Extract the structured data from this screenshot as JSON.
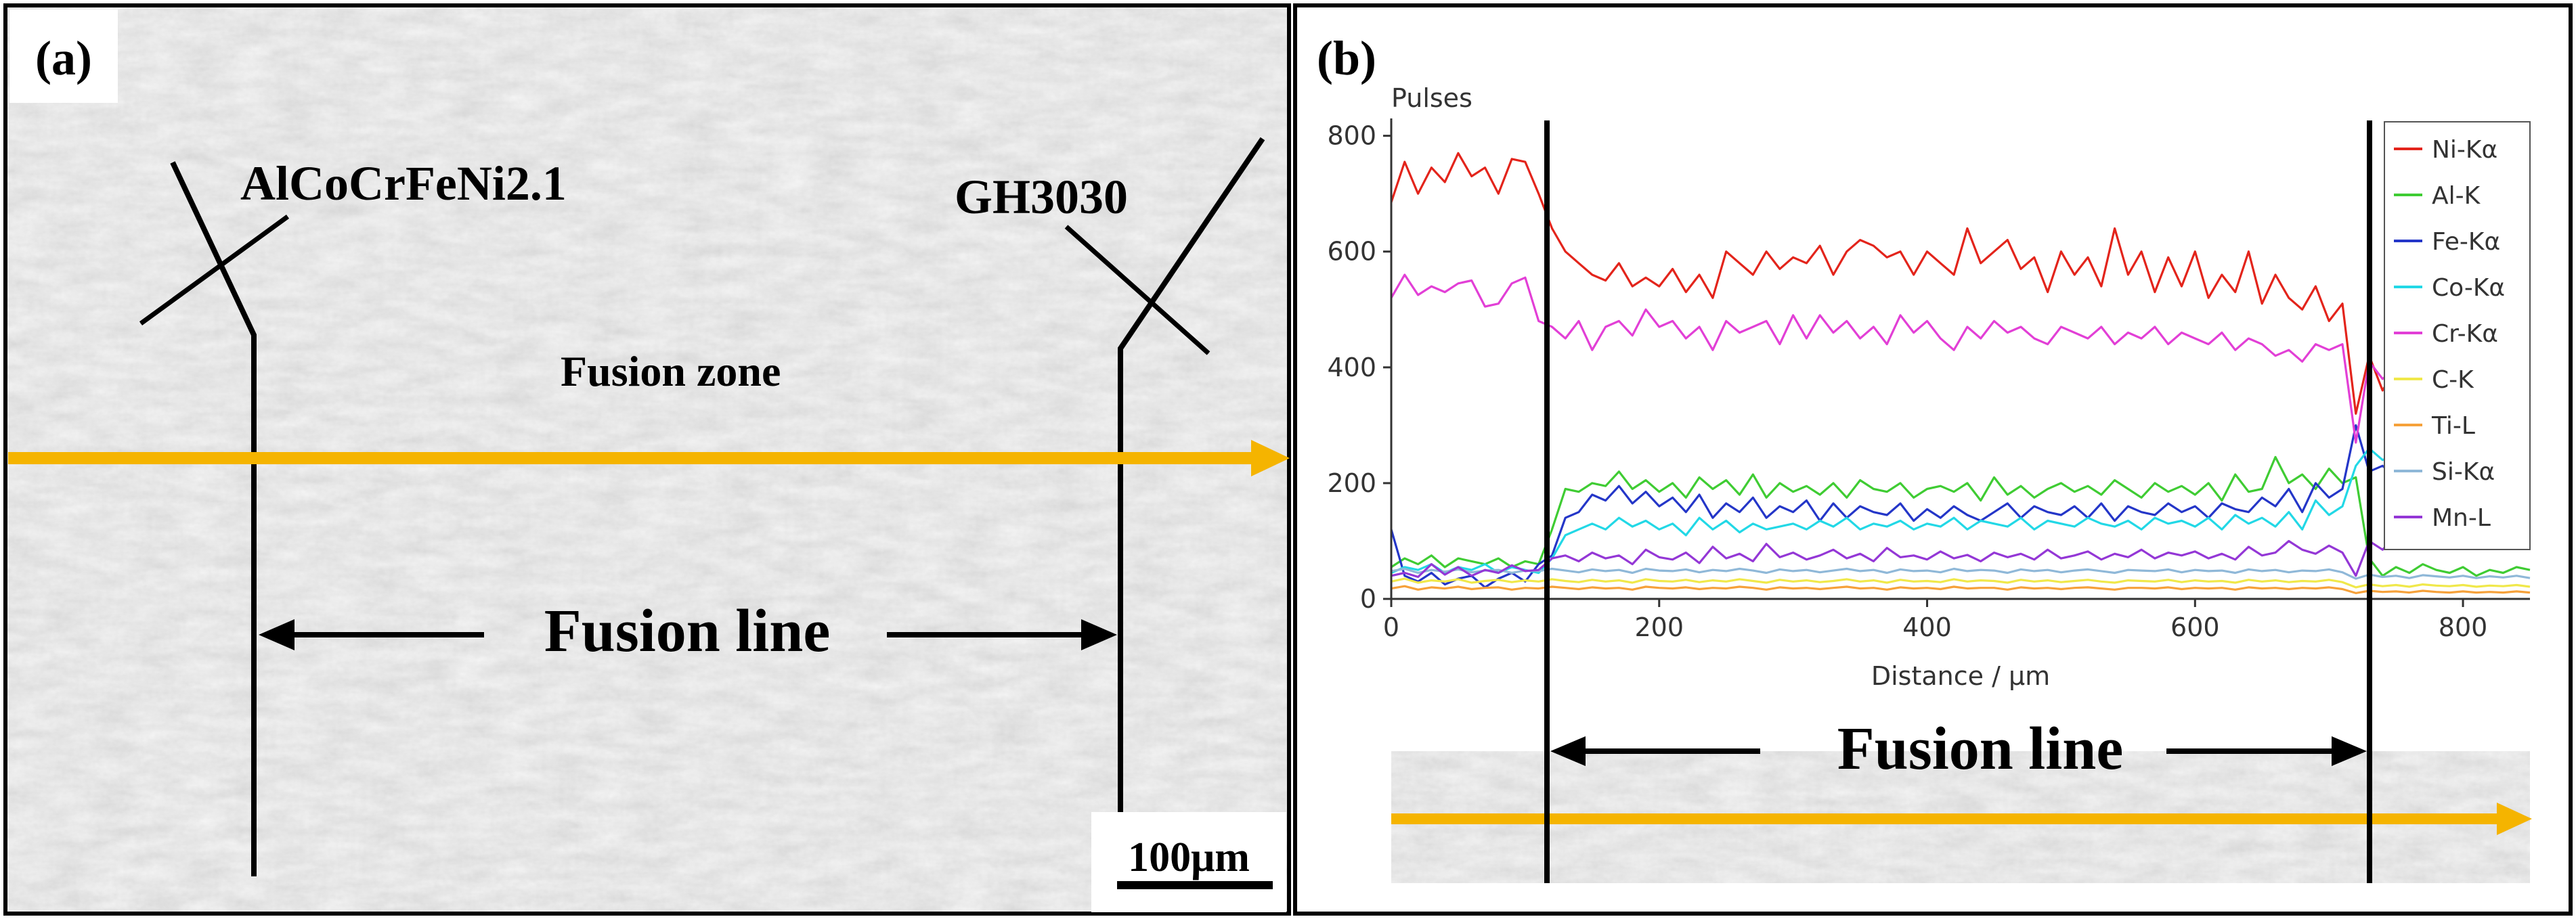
{
  "panel_a": {
    "label": "(a)",
    "base_alloy_label": "AlCoCrFeNi2.1",
    "other_alloy_label": "GH3030",
    "zone_label": "Fusion zone",
    "fusion_line_label": "Fusion line",
    "scale_bar_label": "100μm"
  },
  "panel_b": {
    "label": "(b)",
    "fusion_line_label": "Fusion line"
  },
  "colors": {
    "scan_arrow": "#f5b400",
    "sem_background": "#cdcdcd"
  },
  "chart_data": {
    "type": "line",
    "title": "",
    "xlabel": "Distance / μm",
    "ylabel": "Pulses",
    "xlim": [
      0,
      850
    ],
    "ylim": [
      0,
      830
    ],
    "xticks": [
      0,
      200,
      400,
      600,
      800
    ],
    "yticks": [
      0,
      200,
      400,
      600,
      800
    ],
    "grid": false,
    "legend_position": "top-right",
    "fusion_lines_x": [
      113,
      725
    ],
    "x": [
      0,
      10,
      20,
      30,
      40,
      50,
      60,
      70,
      80,
      90,
      100,
      110,
      120,
      130,
      140,
      150,
      160,
      170,
      180,
      190,
      200,
      210,
      220,
      230,
      240,
      250,
      260,
      270,
      280,
      290,
      300,
      310,
      320,
      330,
      340,
      350,
      360,
      370,
      380,
      390,
      400,
      410,
      420,
      430,
      440,
      450,
      460,
      470,
      480,
      490,
      500,
      510,
      520,
      530,
      540,
      550,
      560,
      570,
      580,
      590,
      600,
      610,
      620,
      630,
      640,
      650,
      660,
      670,
      680,
      690,
      700,
      710,
      720,
      730,
      740,
      750,
      760,
      770,
      780,
      790,
      800,
      810,
      820,
      830,
      840,
      850
    ],
    "series": [
      {
        "name": "Ni-Kα",
        "color": "#e3241b",
        "values": [
          685,
          755,
          700,
          745,
          720,
          770,
          730,
          745,
          700,
          760,
          755,
          700,
          640,
          600,
          580,
          560,
          550,
          580,
          540,
          555,
          540,
          570,
          530,
          560,
          520,
          600,
          580,
          560,
          600,
          570,
          590,
          580,
          610,
          560,
          600,
          620,
          610,
          590,
          600,
          560,
          600,
          580,
          560,
          640,
          580,
          600,
          620,
          570,
          590,
          530,
          600,
          560,
          590,
          540,
          640,
          560,
          600,
          530,
          590,
          540,
          600,
          520,
          560,
          530,
          600,
          510,
          560,
          520,
          500,
          540,
          480,
          510,
          320,
          420,
          360,
          400,
          330,
          390,
          350,
          410,
          380,
          340,
          390,
          360,
          380,
          350
        ]
      },
      {
        "name": "Al-K",
        "color": "#3fcc33",
        "values": [
          55,
          70,
          60,
          75,
          55,
          70,
          65,
          60,
          70,
          55,
          65,
          60,
          120,
          190,
          185,
          200,
          195,
          220,
          190,
          205,
          185,
          200,
          175,
          210,
          190,
          205,
          180,
          215,
          175,
          200,
          185,
          195,
          180,
          200,
          175,
          205,
          190,
          185,
          200,
          175,
          190,
          195,
          185,
          200,
          170,
          210,
          180,
          195,
          175,
          190,
          200,
          185,
          195,
          180,
          205,
          190,
          175,
          200,
          185,
          195,
          180,
          200,
          170,
          215,
          185,
          190,
          245,
          200,
          215,
          190,
          225,
          200,
          210,
          70,
          40,
          55,
          45,
          60,
          50,
          45,
          55,
          40,
          50,
          45,
          55,
          50
        ]
      },
      {
        "name": "Fe-Kα",
        "color": "#2436c8",
        "values": [
          120,
          40,
          30,
          45,
          25,
          35,
          40,
          20,
          35,
          45,
          30,
          60,
          75,
          140,
          150,
          180,
          170,
          195,
          165,
          185,
          160,
          175,
          150,
          180,
          140,
          165,
          150,
          175,
          140,
          160,
          150,
          170,
          135,
          165,
          140,
          160,
          150,
          145,
          165,
          135,
          155,
          140,
          160,
          145,
          135,
          150,
          165,
          140,
          160,
          150,
          145,
          160,
          140,
          165,
          135,
          160,
          150,
          145,
          165,
          150,
          160,
          140,
          165,
          155,
          150,
          175,
          160,
          190,
          150,
          200,
          175,
          190,
          300,
          220,
          230,
          210,
          240,
          220,
          230,
          215,
          235,
          220,
          210,
          230,
          225,
          215
        ]
      },
      {
        "name": "Co-Kα",
        "color": "#22d8e6",
        "values": [
          45,
          55,
          50,
          60,
          45,
          55,
          50,
          60,
          45,
          55,
          50,
          45,
          70,
          110,
          120,
          130,
          120,
          140,
          125,
          135,
          120,
          130,
          110,
          140,
          120,
          135,
          115,
          130,
          120,
          125,
          130,
          120,
          135,
          125,
          140,
          120,
          130,
          125,
          135,
          120,
          130,
          125,
          140,
          120,
          135,
          130,
          125,
          140,
          120,
          135,
          130,
          125,
          140,
          130,
          125,
          135,
          120,
          140,
          130,
          135,
          125,
          140,
          120,
          145,
          130,
          140,
          125,
          150,
          120,
          170,
          145,
          160,
          230,
          260,
          240,
          250,
          235,
          245,
          240,
          230,
          250,
          240,
          235,
          245,
          240,
          230
        ]
      },
      {
        "name": "Cr-Kα",
        "color": "#e23fd6",
        "values": [
          520,
          560,
          525,
          540,
          530,
          545,
          550,
          505,
          510,
          545,
          555,
          480,
          470,
          450,
          480,
          430,
          470,
          480,
          455,
          500,
          470,
          480,
          450,
          470,
          430,
          480,
          460,
          470,
          480,
          440,
          490,
          450,
          490,
          460,
          480,
          450,
          470,
          440,
          490,
          460,
          480,
          450,
          430,
          470,
          450,
          480,
          460,
          470,
          450,
          440,
          470,
          460,
          450,
          470,
          440,
          460,
          450,
          470,
          440,
          460,
          450,
          440,
          460,
          430,
          450,
          440,
          420,
          430,
          410,
          440,
          430,
          440,
          270,
          410,
          380,
          400,
          370,
          390,
          360,
          400,
          370,
          390,
          360,
          380,
          370,
          360
        ]
      },
      {
        "name": "C-K",
        "color": "#f0e84a",
        "values": [
          30,
          35,
          28,
          32,
          30,
          34,
          28,
          31,
          33,
          29,
          32,
          30,
          34,
          31,
          29,
          33,
          30,
          32,
          28,
          34,
          31,
          30,
          33,
          29,
          32,
          30,
          34,
          31,
          28,
          33,
          30,
          32,
          29,
          31,
          34,
          30,
          32,
          28,
          33,
          30,
          31,
          29,
          34,
          30,
          32,
          31,
          28,
          33,
          30,
          32,
          29,
          31,
          33,
          30,
          28,
          32,
          31,
          30,
          33,
          29,
          32,
          30,
          31,
          28,
          33,
          30,
          32,
          29,
          31,
          30,
          33,
          29,
          20,
          25,
          22,
          24,
          21,
          25,
          23,
          22,
          24,
          21,
          23,
          22,
          24,
          21
        ]
      },
      {
        "name": "Ti-L",
        "color": "#f6a13a",
        "values": [
          18,
          22,
          16,
          20,
          18,
          21,
          17,
          19,
          20,
          16,
          19,
          18,
          21,
          19,
          17,
          20,
          18,
          19,
          16,
          21,
          19,
          18,
          20,
          17,
          19,
          18,
          21,
          19,
          16,
          20,
          18,
          19,
          17,
          19,
          21,
          18,
          19,
          16,
          20,
          18,
          19,
          17,
          21,
          18,
          19,
          19,
          16,
          20,
          18,
          19,
          17,
          19,
          20,
          18,
          16,
          19,
          19,
          18,
          20,
          17,
          19,
          18,
          19,
          16,
          20,
          18,
          19,
          17,
          19,
          18,
          20,
          17,
          10,
          14,
          12,
          13,
          11,
          14,
          12,
          11,
          13,
          11,
          12,
          11,
          13,
          11
        ]
      },
      {
        "name": "Si-Kα",
        "color": "#8fb8d8",
        "values": [
          48,
          52,
          45,
          50,
          47,
          51,
          46,
          49,
          50,
          45,
          49,
          48,
          52,
          49,
          46,
          51,
          48,
          50,
          45,
          52,
          49,
          48,
          51,
          46,
          50,
          48,
          52,
          49,
          45,
          51,
          48,
          50,
          46,
          49,
          52,
          48,
          50,
          45,
          51,
          48,
          49,
          46,
          52,
          48,
          50,
          49,
          45,
          51,
          48,
          50,
          46,
          49,
          51,
          48,
          45,
          50,
          49,
          48,
          51,
          46,
          50,
          48,
          49,
          45,
          51,
          48,
          50,
          46,
          49,
          48,
          51,
          46,
          35,
          42,
          38,
          40,
          36,
          41,
          39,
          37,
          40,
          36,
          39,
          37,
          40,
          36
        ]
      },
      {
        "name": "Mn-L",
        "color": "#9437d6",
        "values": [
          40,
          45,
          38,
          60,
          42,
          55,
          40,
          50,
          45,
          58,
          48,
          50,
          70,
          75,
          65,
          80,
          70,
          75,
          60,
          85,
          72,
          68,
          80,
          62,
          90,
          70,
          78,
          65,
          95,
          72,
          80,
          68,
          75,
          85,
          70,
          78,
          65,
          88,
          72,
          75,
          68,
          82,
          70,
          76,
          65,
          80,
          72,
          78,
          68,
          85,
          70,
          75,
          82,
          68,
          78,
          72,
          85,
          70,
          80,
          75,
          82,
          70,
          78,
          68,
          90,
          75,
          80,
          100,
          85,
          78,
          92,
          80,
          40,
          100,
          85,
          110,
          90,
          95,
          105,
          88,
          100,
          92,
          110,
          95,
          100,
          90
        ]
      }
    ]
  }
}
